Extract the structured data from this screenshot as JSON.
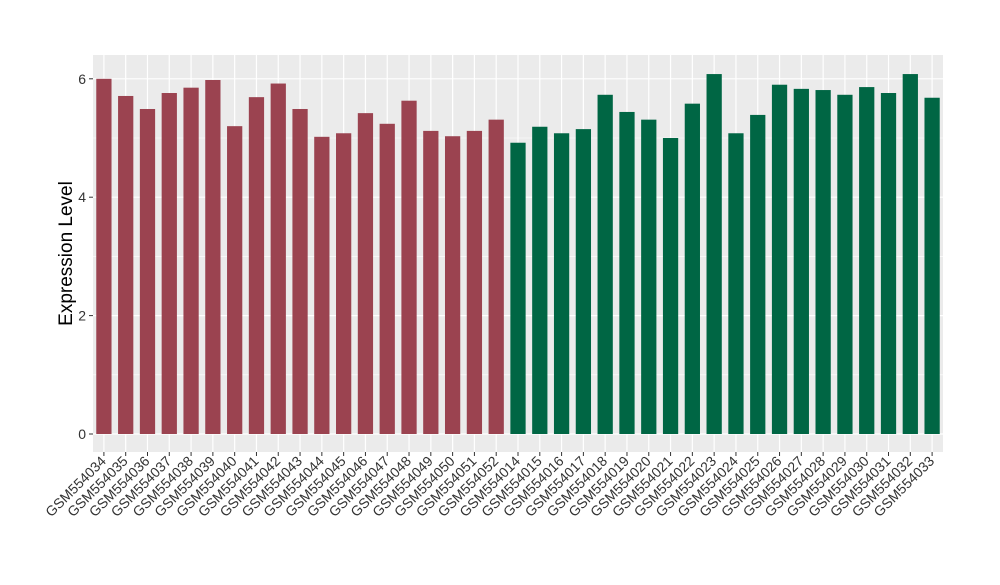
{
  "chart_data": {
    "type": "bar",
    "title": "",
    "xlabel": "",
    "ylabel": "Expression Level",
    "ylim": [
      -0.3,
      6.3
    ],
    "yticks": [
      0,
      2,
      4,
      6
    ],
    "grid": true,
    "legend": "none",
    "panel_background": "#EBEBEB",
    "categories": [
      "GSM554034",
      "GSM554035",
      "GSM554036",
      "GSM554037",
      "GSM554038",
      "GSM554039",
      "GSM554040",
      "GSM554041",
      "GSM554042",
      "GSM554043",
      "GSM554044",
      "GSM554045",
      "GSM554046",
      "GSM554047",
      "GSM554048",
      "GSM554049",
      "GSM554050",
      "GSM554051",
      "GSM554052",
      "GSM554014",
      "GSM554015",
      "GSM554016",
      "GSM554017",
      "GSM554018",
      "GSM554019",
      "GSM554020",
      "GSM554021",
      "GSM554022",
      "GSM554023",
      "GSM554024",
      "GSM554025",
      "GSM554026",
      "GSM554027",
      "GSM554028",
      "GSM554029",
      "GSM554030",
      "GSM554031",
      "GSM554032",
      "GSM554033"
    ],
    "values": [
      6.0,
      5.71,
      5.49,
      5.76,
      5.85,
      5.98,
      5.2,
      5.69,
      5.92,
      5.49,
      5.02,
      5.08,
      5.42,
      5.24,
      5.63,
      5.12,
      5.03,
      5.12,
      5.31,
      4.92,
      5.19,
      5.08,
      5.15,
      5.73,
      5.44,
      5.31,
      5.0,
      5.58,
      6.08,
      5.08,
      5.39,
      5.9,
      5.83,
      5.81,
      5.73,
      5.86,
      5.76,
      6.08,
      5.68
    ],
    "groups": [
      {
        "color": "#9B4350",
        "count": 19
      },
      {
        "color": "#006644",
        "count": 20
      }
    ]
  }
}
